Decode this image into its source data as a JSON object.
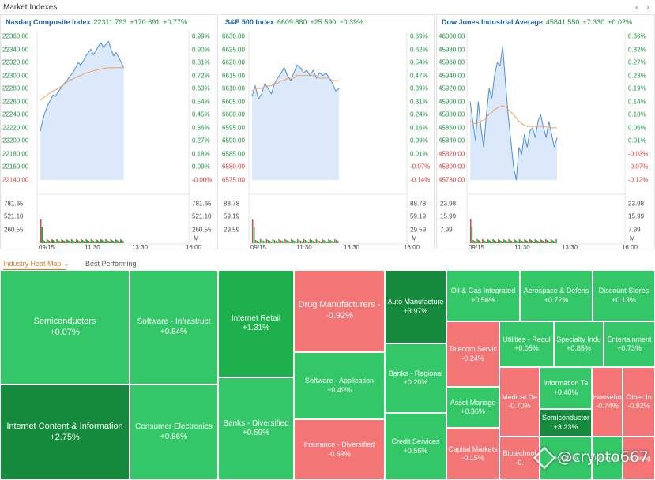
{
  "header": {
    "title": "Market Indexes",
    "prev": "‹",
    "next": "›"
  },
  "panels": [
    {
      "name": "Nasdaq Composite Index",
      "value": "22311.793",
      "change": "+170.691",
      "pct": "+0.77%",
      "left_ticks": [
        "22360.00",
        "22340.00",
        "22320.00",
        "22300.00",
        "22280.00",
        "22260.00",
        "22240.00",
        "22220.00",
        "22200.00",
        "22180.00",
        "22160.00",
        "22140.00"
      ],
      "right_ticks": [
        "0.99%",
        "0.90%",
        "0.81%",
        "0.72%",
        "0.63%",
        "0.54%",
        "0.45%",
        "0.36%",
        "0.27%",
        "0.18%",
        "0.09%",
        "-0.00%"
      ],
      "neg_from": 11,
      "vol_ticks": [
        "781.65",
        "521.10",
        "260.55"
      ],
      "vol_unit": "M",
      "x_ticks": [
        "09/15",
        "11:30",
        "13:30",
        "16:00"
      ],
      "chart_data": {
        "type": "line",
        "ylim": [
          22140,
          22360
        ],
        "prices": [
          22215,
          22232,
          22245,
          22255,
          22262,
          22270,
          22268,
          22275,
          22280,
          22285,
          22290,
          22295,
          22300,
          22305,
          22312,
          22320,
          22316,
          22322,
          22330,
          22335,
          22340,
          22332,
          22338,
          22345,
          22350,
          22343,
          22348,
          22352,
          22340,
          22330,
          22335,
          22328,
          22320,
          22312
        ],
        "avg": [
          22262,
          22265,
          22268,
          22271,
          22274,
          22276,
          22278,
          22280,
          22283,
          22285,
          22288,
          22291,
          22293,
          22295,
          22297,
          22299,
          22300,
          22302,
          22304,
          22305,
          22306,
          22307,
          22308,
          22309,
          22310,
          22311,
          22311,
          22312,
          22312,
          22312,
          22312,
          22312,
          22312,
          22312
        ]
      }
    },
    {
      "name": "S&P 500 Index",
      "value": "6609.880",
      "change": "+25.590",
      "pct": "+0.39%",
      "left_ticks": [
        "6630.00",
        "6625.00",
        "6620.00",
        "6615.00",
        "6610.00",
        "6605.00",
        "6600.00",
        "6595.00",
        "6590.00",
        "6585.00",
        "6580.00",
        "6575.00"
      ],
      "right_ticks": [
        "0.69%",
        "0.62%",
        "0.54%",
        "0.47%",
        "0.39%",
        "0.31%",
        "0.24%",
        "0.16%",
        "0.09%",
        "0.01%",
        "-0.07%",
        "-0.14%"
      ],
      "neg_from": 10,
      "vol_ticks": [
        "88.78",
        "59.19",
        "29.59"
      ],
      "vol_unit": "M",
      "x_ticks": [
        "09/15",
        "11:30",
        "13:30",
        "16:00"
      ],
      "chart_data": {
        "type": "line",
        "ylim": [
          6575,
          6630
        ],
        "prices": [
          6607,
          6611,
          6606,
          6608,
          6612,
          6610,
          6608,
          6612,
          6614,
          6616,
          6618,
          6615,
          6613,
          6616,
          6619,
          6618,
          6616,
          6617,
          6615,
          6617,
          6614,
          6616,
          6615,
          6616,
          6614,
          6612,
          6609,
          6610
        ],
        "avg": [
          6609,
          6610,
          6610,
          6610,
          6611,
          6611,
          6611,
          6612,
          6612,
          6613,
          6613,
          6614,
          6614,
          6614,
          6615,
          6615,
          6615,
          6615,
          6615,
          6615,
          6615,
          6614,
          6614,
          6614,
          6614,
          6613,
          6613,
          6613
        ]
      }
    },
    {
      "name": "Dow Jones Industrial Average",
      "value": "45841.550",
      "change": "+7.330",
      "pct": "+0.02%",
      "left_ticks": [
        "46000.00",
        "45980.00",
        "45960.00",
        "45940.00",
        "45920.00",
        "45900.00",
        "45880.00",
        "45860.00",
        "45840.00",
        "45820.00",
        "45800.00",
        "45780.00"
      ],
      "right_ticks": [
        "0.36%",
        "0.32%",
        "0.27%",
        "0.23%",
        "0.19%",
        "0.14%",
        "0.10%",
        "0.06%",
        "0.01%",
        "-0.03%",
        "-0.07%",
        "-0.12%"
      ],
      "neg_from": 9,
      "vol_ticks": [
        "23.98",
        "15.99",
        "7.99"
      ],
      "vol_unit": "M",
      "x_ticks": [
        "09/15",
        "11:30",
        "13:30",
        "16:00"
      ],
      "chart_data": {
        "type": "line",
        "ylim": [
          45780,
          46000
        ],
        "prices": [
          45900,
          45870,
          45840,
          45900,
          45860,
          45830,
          45880,
          45920,
          45905,
          45940,
          45960,
          45955,
          45985,
          45930,
          45880,
          45840,
          45800,
          45780,
          45830,
          45820,
          45850,
          45830,
          45855,
          45860,
          45845,
          45870,
          45880,
          45860,
          45845,
          45870,
          45850,
          45830,
          45845
        ],
        "avg": [
          45870,
          45868,
          45866,
          45868,
          45870,
          45872,
          45876,
          45880,
          45884,
          45888,
          45890,
          45892,
          45894,
          45892,
          45888,
          45884,
          45880,
          45875,
          45870,
          45866,
          45864,
          45862,
          45862,
          45862,
          45862,
          45862,
          45862,
          45862,
          45861,
          45861,
          45860,
          45860,
          45860
        ]
      }
    }
  ],
  "tabs": {
    "heatmap": "Industry Heat Map",
    "heatmap_arrow": "⌄",
    "best": "Best Performing"
  },
  "colors": {
    "dark_green": "#168a3c",
    "mid_green": "#1fb04e",
    "light_green": "#33c767",
    "red": "#f37575"
  },
  "heatmap": [
    {
      "name": "Semiconductors",
      "pct": "+0.07%"
    },
    {
      "name": "Internet Content & Information",
      "pct": "+2.75%"
    },
    {
      "name": "Software - Infrastruct",
      "pct": "+0.84%"
    },
    {
      "name": "Consumer Electronics",
      "pct": "+0.86%"
    },
    {
      "name": "Internet Retail",
      "pct": "+1.31%"
    },
    {
      "name": "Banks - Diversified",
      "pct": "+0.59%"
    },
    {
      "name": "Drug Manufacturers - ",
      "pct": "-0.92%"
    },
    {
      "name": "Software - Application",
      "pct": "+0.49%"
    },
    {
      "name": "Insurance - Diversified",
      "pct": "-0.69%"
    },
    {
      "name": "Auto Manufacture",
      "pct": "+3.97%"
    },
    {
      "name": "Banks - Regional",
      "pct": "+0.20%"
    },
    {
      "name": "Credit Services",
      "pct": "+0.56%"
    },
    {
      "name": "Oil & Gas Integrated",
      "pct": "+0.56%"
    },
    {
      "name": "Aerospace & Defens",
      "pct": "+0.72%"
    },
    {
      "name": "Discount Stores",
      "pct": "+0.13%"
    },
    {
      "name": "Telecom Servic",
      "pct": "-0.24%"
    },
    {
      "name": "Utilities - Regul",
      "pct": "+0.05%"
    },
    {
      "name": "Specialty Indu",
      "pct": "+0.85%"
    },
    {
      "name": "Entertainment",
      "pct": "+0.73%"
    },
    {
      "name": "Asset Manage",
      "pct": "+0.36%"
    },
    {
      "name": "Medical De",
      "pct": "-0.70%"
    },
    {
      "name": "Information Te",
      "pct": "+0.40%"
    },
    {
      "name": "Househo",
      "pct": "-0.74%"
    },
    {
      "name": "Other In",
      "pct": "-0.92%"
    },
    {
      "name": "Semiconductor",
      "pct": "+3.23%"
    },
    {
      "name": "Capital Markets",
      "pct": "-0.15%"
    },
    {
      "name": "Biotechnol",
      "pct": "-0."
    },
    {
      "name": "",
      "pct": "+0.10%"
    },
    {
      "name": "Financial",
      "pct": ""
    },
    {
      "name": "Beverag",
      "pct": ""
    }
  ],
  "watermark": "@crypto667"
}
